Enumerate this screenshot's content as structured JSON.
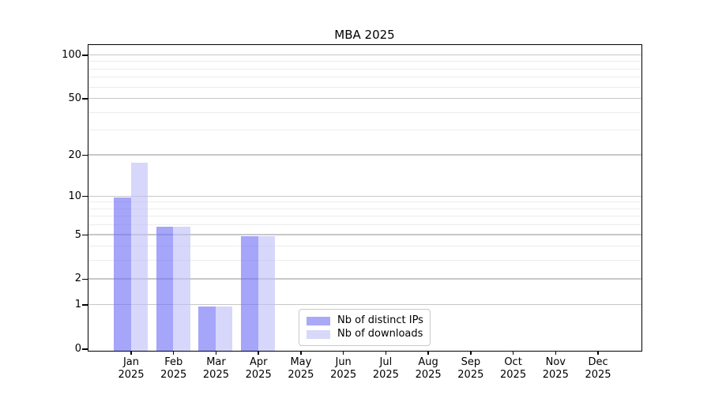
{
  "chart_data": {
    "type": "bar",
    "title": "MBA 2025",
    "categories": [
      "Jan 2025",
      "Feb 2025",
      "Mar 2025",
      "Apr 2025",
      "May 2025",
      "Jun 2025",
      "Jul 2025",
      "Aug 2025",
      "Sep 2025",
      "Oct 2025",
      "Nov 2025",
      "Dec 2025"
    ],
    "series": [
      {
        "name": "Nb of distinct IPs",
        "color": "#a9a9f8",
        "bar_color": "rgba(110,110,246,0.62)",
        "values": [
          10,
          6,
          1,
          5,
          0,
          0,
          0,
          0,
          0,
          0,
          0,
          0
        ]
      },
      {
        "name": "Nb of downloads",
        "color": "#d8d8fa",
        "bar_color": "rgba(190,190,250,0.62)",
        "values": [
          18,
          6,
          1,
          5,
          0,
          0,
          0,
          0,
          0,
          0,
          0,
          0
        ]
      }
    ],
    "xlabel": "",
    "ylabel": "",
    "yscale": "log1p",
    "ylim": [
      0,
      119
    ],
    "y_major_ticks": [
      0,
      1,
      2,
      5,
      10,
      20,
      50,
      100
    ],
    "y_minor_ticks": [
      3,
      4,
      6,
      7,
      8,
      9,
      30,
      40,
      60,
      70,
      80,
      90
    ],
    "grid": "horizontal",
    "legend_position": "lower center",
    "colors": {
      "grid_major": "#c8c8c8",
      "grid_minor": "#ececec",
      "spine": "#000000",
      "text": "#000000",
      "background": "#ffffff"
    }
  }
}
